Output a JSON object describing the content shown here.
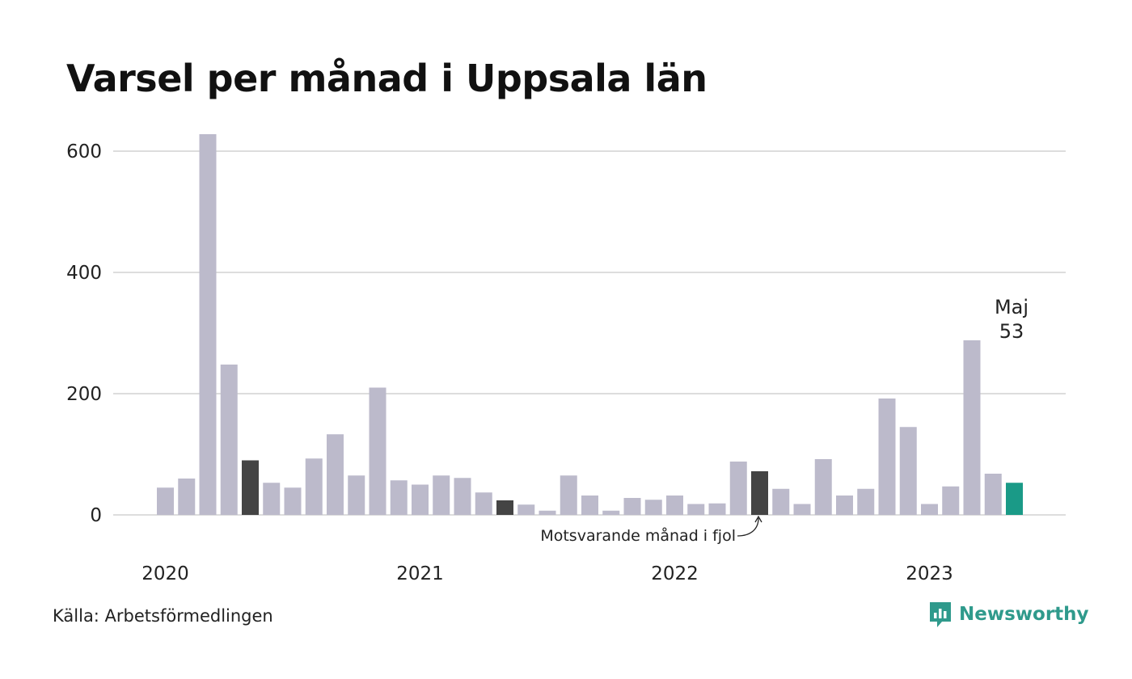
{
  "title": "Varsel per månad i Uppsala län",
  "source": "Källa: Arbetsförmedlingen",
  "brand": {
    "name": "Newsworthy",
    "icon": "newsworthy-logo-icon",
    "color": "#2f9a8c"
  },
  "colors": {
    "normal": "#bcbacb",
    "same_month": "#444444",
    "current": "#1a9a87",
    "grid": "#dddddd"
  },
  "chart_data": {
    "type": "bar",
    "title": "Varsel per månad i Uppsala län",
    "xlabel": "",
    "ylabel": "",
    "ylim": [
      0,
      640
    ],
    "yticks": [
      0,
      200,
      400,
      600
    ],
    "ytick_labels": [
      "0",
      "200",
      "400",
      "600"
    ],
    "xtick_labels": [
      "2020",
      "2021",
      "2022",
      "2023"
    ],
    "grid": true,
    "categories": [
      "2020-01",
      "2020-02",
      "2020-03",
      "2020-04",
      "2020-05",
      "2020-06",
      "2020-07",
      "2020-08",
      "2020-09",
      "2020-10",
      "2020-11",
      "2020-12",
      "2021-01",
      "2021-02",
      "2021-03",
      "2021-04",
      "2021-05",
      "2021-06",
      "2021-07",
      "2021-08",
      "2021-09",
      "2021-10",
      "2021-11",
      "2021-12",
      "2022-01",
      "2022-02",
      "2022-03",
      "2022-04",
      "2022-05",
      "2022-06",
      "2022-07",
      "2022-08",
      "2022-09",
      "2022-10",
      "2022-11",
      "2022-12",
      "2023-01",
      "2023-02",
      "2023-03",
      "2023-04",
      "2023-05"
    ],
    "values": [
      45,
      60,
      628,
      248,
      90,
      53,
      45,
      93,
      133,
      65,
      210,
      57,
      50,
      65,
      61,
      37,
      24,
      17,
      7,
      65,
      32,
      7,
      28,
      25,
      32,
      18,
      19,
      88,
      72,
      43,
      18,
      92,
      32,
      43,
      192,
      145,
      18,
      47,
      288,
      68,
      53
    ],
    "highlight": {
      "same_month_last_years": [
        "2020-05",
        "2021-05",
        "2022-05"
      ],
      "current": "2023-05"
    },
    "callout": {
      "month": "Maj",
      "value": "53"
    },
    "annotation": "Motsvarande månad i fjol"
  }
}
